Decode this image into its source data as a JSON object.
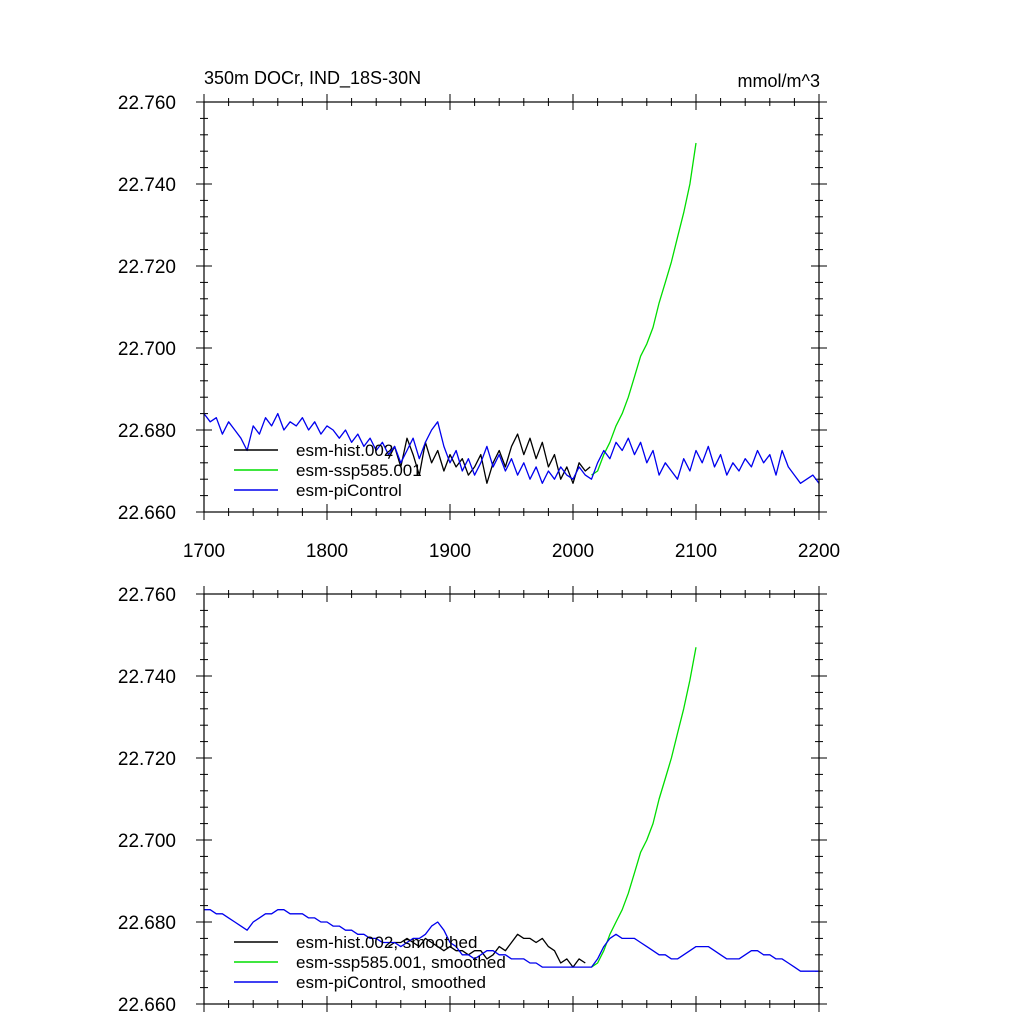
{
  "figure": {
    "title": "350m DOCr, IND_18S-30N",
    "units": "mmol/m^3"
  },
  "colors": {
    "hist": "#000000",
    "ssp": "#00dd00",
    "pic": "#0000ee"
  },
  "chart_data": [
    {
      "type": "line",
      "title": "350m DOCr, IND_18S-30N",
      "units": "mmol/m^3",
      "xlim": [
        1700,
        2200
      ],
      "ylim": [
        22.66,
        22.76
      ],
      "x_ticks": [
        1700,
        1800,
        1900,
        2000,
        2100,
        2200
      ],
      "x_tick_labels": [
        "1700",
        "1800",
        "1900",
        "2000",
        "2100",
        "2200"
      ],
      "y_ticks": [
        22.66,
        22.68,
        22.7,
        22.72,
        22.74,
        22.76
      ],
      "y_tick_labels": [
        "22.660",
        "22.680",
        "22.700",
        "22.720",
        "22.740",
        "22.760"
      ],
      "legend_position": "bottom-left",
      "series": [
        {
          "name": "esm-hist.002",
          "color": "#000000",
          "x": [
            1850,
            1855,
            1860,
            1865,
            1870,
            1875,
            1880,
            1885,
            1890,
            1895,
            1900,
            1905,
            1910,
            1915,
            1920,
            1925,
            1930,
            1935,
            1940,
            1945,
            1950,
            1955,
            1960,
            1965,
            1970,
            1975,
            1980,
            1985,
            1990,
            1995,
            2000,
            2005,
            2010,
            2014
          ],
          "y": [
            22.673,
            22.676,
            22.671,
            22.678,
            22.674,
            22.669,
            22.677,
            22.672,
            22.675,
            22.67,
            22.674,
            22.671,
            22.673,
            22.669,
            22.671,
            22.674,
            22.667,
            22.672,
            22.675,
            22.671,
            22.676,
            22.679,
            22.674,
            22.678,
            22.673,
            22.677,
            22.671,
            22.674,
            22.668,
            22.671,
            22.667,
            22.672,
            22.67,
            22.671
          ]
        },
        {
          "name": "esm-ssp585.001",
          "color": "#00dd00",
          "x": [
            2015,
            2020,
            2025,
            2030,
            2035,
            2040,
            2045,
            2050,
            2055,
            2060,
            2065,
            2070,
            2075,
            2080,
            2085,
            2090,
            2095,
            2100
          ],
          "y": [
            22.669,
            22.67,
            22.674,
            22.677,
            22.681,
            22.684,
            22.688,
            22.693,
            22.698,
            22.701,
            22.705,
            22.711,
            22.716,
            22.721,
            22.727,
            22.733,
            22.74,
            22.75
          ]
        },
        {
          "name": "esm-piControl",
          "color": "#0000ee",
          "x": [
            1700,
            1705,
            1710,
            1715,
            1720,
            1725,
            1730,
            1735,
            1740,
            1745,
            1750,
            1755,
            1760,
            1765,
            1770,
            1775,
            1780,
            1785,
            1790,
            1795,
            1800,
            1805,
            1810,
            1815,
            1820,
            1825,
            1830,
            1835,
            1840,
            1845,
            1850,
            1855,
            1860,
            1865,
            1870,
            1875,
            1880,
            1885,
            1890,
            1895,
            1900,
            1905,
            1910,
            1915,
            1920,
            1925,
            1930,
            1935,
            1940,
            1945,
            1950,
            1955,
            1960,
            1965,
            1970,
            1975,
            1980,
            1985,
            1990,
            1995,
            2000,
            2005,
            2010,
            2015,
            2020,
            2025,
            2030,
            2035,
            2040,
            2045,
            2050,
            2055,
            2060,
            2065,
            2070,
            2075,
            2080,
            2085,
            2090,
            2095,
            2100,
            2105,
            2110,
            2115,
            2120,
            2125,
            2130,
            2135,
            2140,
            2145,
            2150,
            2155,
            2160,
            2165,
            2170,
            2175,
            2180,
            2185,
            2190,
            2195,
            2200
          ],
          "y": [
            22.684,
            22.682,
            22.683,
            22.679,
            22.682,
            22.68,
            22.678,
            22.675,
            22.681,
            22.679,
            22.683,
            22.681,
            22.684,
            22.68,
            22.682,
            22.681,
            22.683,
            22.68,
            22.682,
            22.679,
            22.681,
            22.68,
            22.678,
            22.68,
            22.677,
            22.679,
            22.676,
            22.678,
            22.675,
            22.677,
            22.674,
            22.676,
            22.672,
            22.675,
            22.678,
            22.673,
            22.677,
            22.68,
            22.682,
            22.676,
            22.672,
            22.675,
            22.67,
            22.673,
            22.669,
            22.672,
            22.676,
            22.671,
            22.674,
            22.67,
            22.673,
            22.669,
            22.672,
            22.668,
            22.671,
            22.667,
            22.67,
            22.668,
            22.671,
            22.669,
            22.668,
            22.671,
            22.669,
            22.668,
            22.672,
            22.675,
            22.673,
            22.677,
            22.675,
            22.678,
            22.674,
            22.677,
            22.672,
            22.675,
            22.669,
            22.672,
            22.67,
            22.668,
            22.673,
            22.67,
            22.675,
            22.672,
            22.676,
            22.671,
            22.674,
            22.669,
            22.672,
            22.67,
            22.673,
            22.671,
            22.675,
            22.672,
            22.674,
            22.669,
            22.675,
            22.671,
            22.669,
            22.667,
            22.668,
            22.669,
            22.667
          ]
        }
      ]
    },
    {
      "type": "line",
      "xlim": [
        1700,
        2200
      ],
      "ylim": [
        22.66,
        22.76
      ],
      "x_ticks": [
        1700,
        1800,
        1900,
        2000,
        2100,
        2200
      ],
      "y_ticks": [
        22.66,
        22.68,
        22.7,
        22.72,
        22.74,
        22.76
      ],
      "y_tick_labels": [
        "22.660",
        "22.680",
        "22.700",
        "22.720",
        "22.740",
        "22.760"
      ],
      "legend_position": "bottom-left",
      "series": [
        {
          "name": "esm-hist.002, smoothed",
          "color": "#000000",
          "x": [
            1850,
            1855,
            1860,
            1865,
            1870,
            1875,
            1880,
            1885,
            1890,
            1895,
            1900,
            1905,
            1910,
            1915,
            1920,
            1925,
            1930,
            1935,
            1940,
            1945,
            1950,
            1955,
            1960,
            1965,
            1970,
            1975,
            1980,
            1985,
            1990,
            1995,
            2000,
            2005,
            2010
          ],
          "y": [
            22.674,
            22.675,
            22.675,
            22.676,
            22.675,
            22.674,
            22.676,
            22.675,
            22.674,
            22.673,
            22.674,
            22.673,
            22.673,
            22.672,
            22.673,
            22.673,
            22.671,
            22.672,
            22.674,
            22.673,
            22.675,
            22.677,
            22.676,
            22.676,
            22.675,
            22.676,
            22.674,
            22.673,
            22.67,
            22.671,
            22.669,
            22.671,
            22.67
          ]
        },
        {
          "name": "esm-ssp585.001, smoothed",
          "color": "#00dd00",
          "x": [
            2015,
            2020,
            2025,
            2030,
            2035,
            2040,
            2045,
            2050,
            2055,
            2060,
            2065,
            2070,
            2075,
            2080,
            2085,
            2090,
            2095,
            2100
          ],
          "y": [
            22.669,
            22.67,
            22.673,
            22.677,
            22.68,
            22.683,
            22.687,
            22.692,
            22.697,
            22.7,
            22.704,
            22.71,
            22.715,
            22.72,
            22.726,
            22.732,
            22.739,
            22.747
          ]
        },
        {
          "name": "esm-piControl, smoothed",
          "color": "#0000ee",
          "x": [
            1700,
            1705,
            1710,
            1715,
            1720,
            1725,
            1730,
            1735,
            1740,
            1745,
            1750,
            1755,
            1760,
            1765,
            1770,
            1775,
            1780,
            1785,
            1790,
            1795,
            1800,
            1805,
            1810,
            1815,
            1820,
            1825,
            1830,
            1835,
            1840,
            1845,
            1850,
            1855,
            1860,
            1865,
            1870,
            1875,
            1880,
            1885,
            1890,
            1895,
            1900,
            1905,
            1910,
            1915,
            1920,
            1925,
            1930,
            1935,
            1940,
            1945,
            1950,
            1955,
            1960,
            1965,
            1970,
            1975,
            1980,
            1985,
            1990,
            1995,
            2000,
            2005,
            2010,
            2015,
            2020,
            2025,
            2030,
            2035,
            2040,
            2045,
            2050,
            2055,
            2060,
            2065,
            2070,
            2075,
            2080,
            2085,
            2090,
            2095,
            2100,
            2105,
            2110,
            2115,
            2120,
            2125,
            2130,
            2135,
            2140,
            2145,
            2150,
            2155,
            2160,
            2165,
            2170,
            2175,
            2180,
            2185,
            2190,
            2195,
            2200
          ],
          "y": [
            22.683,
            22.683,
            22.682,
            22.682,
            22.681,
            22.68,
            22.679,
            22.678,
            22.68,
            22.681,
            22.682,
            22.682,
            22.683,
            22.683,
            22.682,
            22.682,
            22.682,
            22.681,
            22.681,
            22.68,
            22.68,
            22.679,
            22.679,
            22.678,
            22.678,
            22.677,
            22.677,
            22.676,
            22.676,
            22.675,
            22.675,
            22.675,
            22.674,
            22.675,
            22.676,
            22.676,
            22.677,
            22.679,
            22.68,
            22.678,
            22.675,
            22.674,
            22.672,
            22.672,
            22.671,
            22.672,
            22.673,
            22.673,
            22.672,
            22.672,
            22.671,
            22.671,
            22.671,
            22.67,
            22.67,
            22.669,
            22.669,
            22.669,
            22.669,
            22.669,
            22.669,
            22.669,
            22.669,
            22.669,
            22.671,
            22.674,
            22.676,
            22.677,
            22.676,
            22.676,
            22.676,
            22.675,
            22.674,
            22.673,
            22.672,
            22.672,
            22.671,
            22.671,
            22.672,
            22.673,
            22.674,
            22.674,
            22.674,
            22.673,
            22.672,
            22.671,
            22.671,
            22.671,
            22.672,
            22.673,
            22.673,
            22.672,
            22.672,
            22.671,
            22.671,
            22.67,
            22.669,
            22.668,
            22.668,
            22.668,
            22.668
          ]
        }
      ]
    }
  ]
}
